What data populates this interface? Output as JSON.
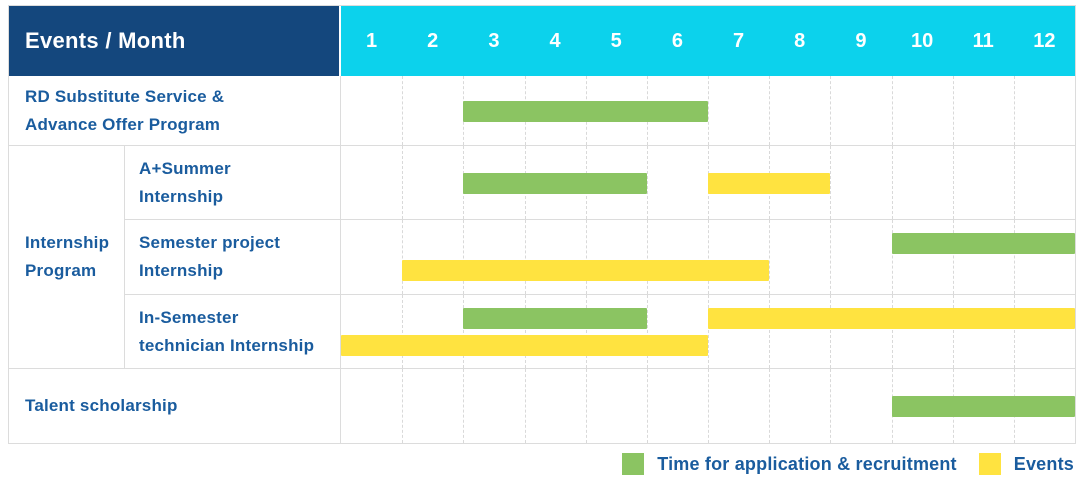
{
  "header": {
    "title": "Events / Month",
    "months": [
      "1",
      "2",
      "3",
      "4",
      "5",
      "6",
      "7",
      "8",
      "9",
      "10",
      "11",
      "12"
    ]
  },
  "group_column": {
    "label_lines": [
      "Internship",
      "Program"
    ]
  },
  "colors": {
    "header_navy": "#14477D",
    "header_cyan": "#0CD2EC",
    "label_blue": "#1A5C9E",
    "grid_gray": "#DCDCDC"
  },
  "chart_data": {
    "type": "gantt",
    "x_unit": "month",
    "x_range": [
      1,
      12
    ],
    "grid": true,
    "legend_position": "bottom-right",
    "palette": {
      "application": "#8BC462",
      "events": "#FFE340"
    },
    "legend": [
      {
        "type": "application",
        "label": "Time for application & recruitment",
        "color": "#8BC462"
      },
      {
        "type": "events",
        "label": "Events",
        "color": "#FFE340"
      }
    ],
    "tasks": [
      {
        "group": "",
        "name": "RD Substitute Service & Advance Offer Program",
        "name_lines": [
          "RD Substitute Service &",
          "Advance Offer Program"
        ],
        "bars": [
          {
            "type": "application",
            "start_month": 3,
            "end_month": 6,
            "line": 0
          }
        ]
      },
      {
        "group": "Internship Program",
        "name": "A+Summer Internship",
        "name_lines": [
          "A+Summer",
          "Internship"
        ],
        "bars": [
          {
            "type": "application",
            "start_month": 3,
            "end_month": 5,
            "line": 0
          },
          {
            "type": "events",
            "start_month": 7,
            "end_month": 8,
            "line": 0
          }
        ]
      },
      {
        "group": "Internship Program",
        "name": "Semester project Internship",
        "name_lines": [
          "Semester project",
          "Internship"
        ],
        "bars": [
          {
            "type": "application",
            "start_month": 10,
            "end_month": 12,
            "line": 0
          },
          {
            "type": "events",
            "start_month": 2,
            "end_month": 7,
            "line": 1
          }
        ]
      },
      {
        "group": "Internship Program",
        "name": "In-Semester technician Internship",
        "name_lines": [
          "In-Semester",
          "technician Internship"
        ],
        "bars": [
          {
            "type": "application",
            "start_month": 3,
            "end_month": 5,
            "line": 0
          },
          {
            "type": "events",
            "start_month": 7,
            "end_month": 12,
            "line": 0
          },
          {
            "type": "events",
            "start_month": 1,
            "end_month": 6,
            "line": 1
          }
        ]
      },
      {
        "group": "",
        "name": "Talent scholarship",
        "name_lines": [
          "Talent scholarship"
        ],
        "bars": [
          {
            "type": "application",
            "start_month": 10,
            "end_month": 12,
            "line": 0
          }
        ]
      }
    ]
  }
}
